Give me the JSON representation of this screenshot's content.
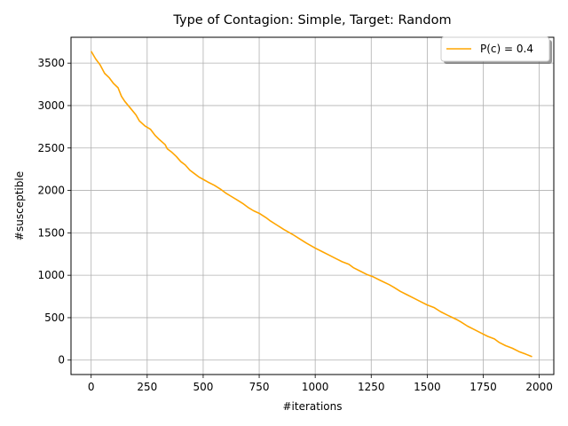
{
  "chart_data": {
    "type": "line",
    "title": "Type of Contagion: Simple, Target: Random",
    "xlabel": "#iterations",
    "ylabel": "#susceptible",
    "xlim": [
      -90,
      2065
    ],
    "ylim": [
      -170,
      3805
    ],
    "xticks": [
      0,
      250,
      500,
      750,
      1000,
      1250,
      1500,
      1750,
      2000
    ],
    "yticks": [
      0,
      500,
      1000,
      1500,
      2000,
      2500,
      3000,
      3500
    ],
    "grid": true,
    "legend": "top-right",
    "series": [
      {
        "name": "P(c) = 0.4",
        "color": "#ffa500",
        "x": [
          0,
          20,
          40,
          60,
          80,
          100,
          120,
          135,
          150,
          175,
          200,
          215,
          240,
          265,
          285,
          300,
          330,
          340,
          360,
          380,
          400,
          420,
          440,
          460,
          480,
          500,
          520,
          550,
          580,
          600,
          625,
          650,
          680,
          700,
          725,
          750,
          780,
          800,
          830,
          860,
          900,
          930,
          960,
          980,
          1000,
          1030,
          1060,
          1090,
          1120,
          1150,
          1170,
          1200,
          1230,
          1260,
          1290,
          1330,
          1350,
          1380,
          1410,
          1440,
          1470,
          1500,
          1530,
          1560,
          1590,
          1630,
          1650,
          1680,
          1710,
          1740,
          1770,
          1800,
          1820,
          1850,
          1880,
          1910,
          1940,
          1968
        ],
        "y": [
          3640,
          3550,
          3480,
          3380,
          3330,
          3260,
          3210,
          3110,
          3050,
          2970,
          2890,
          2820,
          2760,
          2720,
          2650,
          2610,
          2540,
          2490,
          2450,
          2400,
          2340,
          2300,
          2240,
          2200,
          2160,
          2130,
          2100,
          2060,
          2010,
          1970,
          1930,
          1890,
          1840,
          1800,
          1760,
          1730,
          1680,
          1640,
          1590,
          1540,
          1480,
          1430,
          1380,
          1350,
          1320,
          1280,
          1240,
          1200,
          1160,
          1130,
          1090,
          1050,
          1010,
          980,
          940,
          890,
          860,
          810,
          770,
          730,
          690,
          650,
          620,
          570,
          530,
          480,
          450,
          400,
          360,
          320,
          280,
          250,
          210,
          170,
          140,
          100,
          70,
          40
        ]
      }
    ]
  }
}
